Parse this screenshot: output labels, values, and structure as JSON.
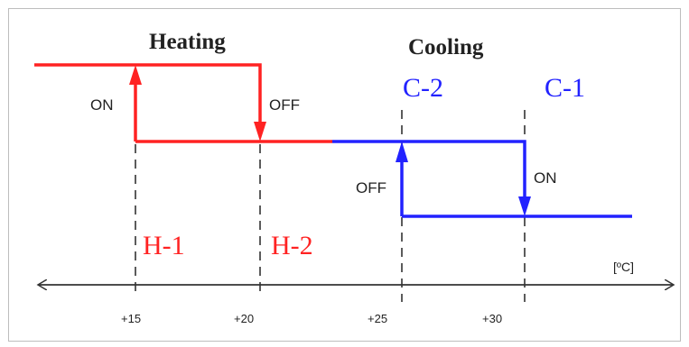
{
  "sections": {
    "heating_title": "Heating",
    "cooling_title": "Cooling"
  },
  "labels": {
    "h1": "H-1",
    "h2": "H-2",
    "c1": "C-1",
    "c2": "C-2",
    "on_left": "ON",
    "off_left": "OFF",
    "off_right": "OFF",
    "on_right": "ON",
    "unit": "[ºC]"
  },
  "ticks": [
    "+15",
    "+20",
    "+25",
    "+30"
  ],
  "colors": {
    "heating": "#ff2222",
    "cooling": "#2222ff",
    "axis": "#333333",
    "text": "#222222"
  }
}
